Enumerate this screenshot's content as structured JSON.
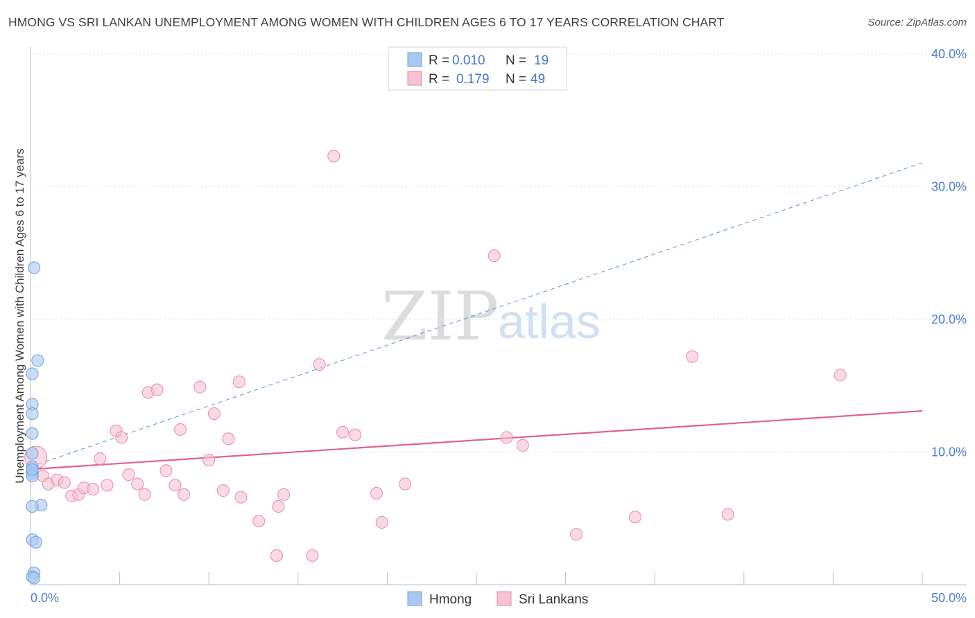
{
  "header": {
    "title": "HMONG VS SRI LANKAN UNEMPLOYMENT AMONG WOMEN WITH CHILDREN AGES 6 TO 17 YEARS CORRELATION CHART",
    "source": "Source: ZipAtlas.com"
  },
  "watermark": {
    "part1": "ZIP",
    "part2": "atlas"
  },
  "legend": {
    "rows": [
      {
        "r_label": "R =",
        "r_value": "0.010",
        "n_label": "N =",
        "n_value": "19",
        "color": "#a9c8f0",
        "stroke": "#6a9fe0"
      },
      {
        "r_label": "R =",
        "r_value": "0.179",
        "n_label": "N =",
        "n_value": "49",
        "color": "#f7c2d2",
        "stroke": "#e888a8"
      }
    ]
  },
  "chart_data": {
    "type": "scatter",
    "title": "HMONG VS SRI LANKAN UNEMPLOYMENT AMONG WOMEN WITH CHILDREN AGES 6 TO 17 YEARS CORRELATION CHART",
    "xlabel": "",
    "ylabel": "Unemployment Among Women with Children Ages 6 to 17 years",
    "xlim": [
      0,
      50
    ],
    "ylim": [
      0,
      40
    ],
    "x_tick_labels": [
      "0.0%",
      "50.0%"
    ],
    "y_ticks": [
      10,
      20,
      30,
      40
    ],
    "y_tick_labels": [
      "10.0%",
      "20.0%",
      "30.0%",
      "40.0%"
    ],
    "grid": true,
    "series": [
      {
        "name": "Hmong",
        "color": "#a9c8f0",
        "stroke": "#6a9fe0",
        "points": [
          [
            0.2,
            23.9
          ],
          [
            0.4,
            16.9
          ],
          [
            0.1,
            15.9
          ],
          [
            0.1,
            13.6
          ],
          [
            0.1,
            12.9
          ],
          [
            0.1,
            11.4
          ],
          [
            0.1,
            9.9
          ],
          [
            0.1,
            8.9
          ],
          [
            0.1,
            8.6
          ],
          [
            0.1,
            8.4
          ],
          [
            0.1,
            8.2
          ],
          [
            0.6,
            6.0
          ],
          [
            0.1,
            5.9
          ],
          [
            0.1,
            3.4
          ],
          [
            0.3,
            3.2
          ],
          [
            0.2,
            0.9
          ],
          [
            0.1,
            0.6
          ],
          [
            0.2,
            0.5
          ],
          [
            0.1,
            8.7
          ]
        ],
        "trend": {
          "x": [
            0,
            50
          ],
          "y": [
            8.9,
            31.8
          ],
          "style": "dashed"
        }
      },
      {
        "name": "Sri Lankans",
        "color": "#f7c2d2",
        "stroke": "#e888a8",
        "points": [
          [
            0.3,
            9.6
          ],
          [
            0.7,
            8.2
          ],
          [
            1.0,
            7.6
          ],
          [
            1.5,
            7.9
          ],
          [
            1.9,
            7.7
          ],
          [
            2.3,
            6.7
          ],
          [
            2.7,
            6.8
          ],
          [
            3.0,
            7.3
          ],
          [
            3.5,
            7.2
          ],
          [
            3.9,
            9.5
          ],
          [
            4.3,
            7.5
          ],
          [
            4.8,
            11.6
          ],
          [
            5.1,
            11.1
          ],
          [
            5.5,
            8.3
          ],
          [
            6.0,
            7.6
          ],
          [
            6.4,
            6.8
          ],
          [
            6.6,
            14.5
          ],
          [
            7.1,
            14.7
          ],
          [
            7.6,
            8.6
          ],
          [
            8.1,
            7.5
          ],
          [
            8.4,
            11.7
          ],
          [
            8.6,
            6.8
          ],
          [
            9.5,
            14.9
          ],
          [
            10.0,
            9.4
          ],
          [
            10.3,
            12.9
          ],
          [
            10.8,
            7.1
          ],
          [
            11.1,
            11.0
          ],
          [
            11.7,
            15.3
          ],
          [
            11.8,
            6.6
          ],
          [
            12.8,
            4.8
          ],
          [
            13.9,
            5.9
          ],
          [
            14.2,
            6.8
          ],
          [
            15.8,
            2.2
          ],
          [
            16.2,
            16.6
          ],
          [
            17.0,
            32.3
          ],
          [
            17.5,
            11.5
          ],
          [
            18.2,
            11.3
          ],
          [
            19.4,
            6.9
          ],
          [
            19.7,
            4.7
          ],
          [
            21.0,
            7.6
          ],
          [
            26.0,
            24.8
          ],
          [
            26.7,
            11.1
          ],
          [
            27.6,
            10.5
          ],
          [
            30.6,
            3.8
          ],
          [
            33.9,
            5.1
          ],
          [
            37.1,
            17.2
          ],
          [
            39.1,
            5.3
          ],
          [
            45.4,
            15.8
          ],
          [
            13.8,
            2.2
          ]
        ],
        "trend": {
          "x": [
            0,
            50
          ],
          "y": [
            8.7,
            13.1
          ],
          "style": "solid"
        }
      }
    ]
  }
}
